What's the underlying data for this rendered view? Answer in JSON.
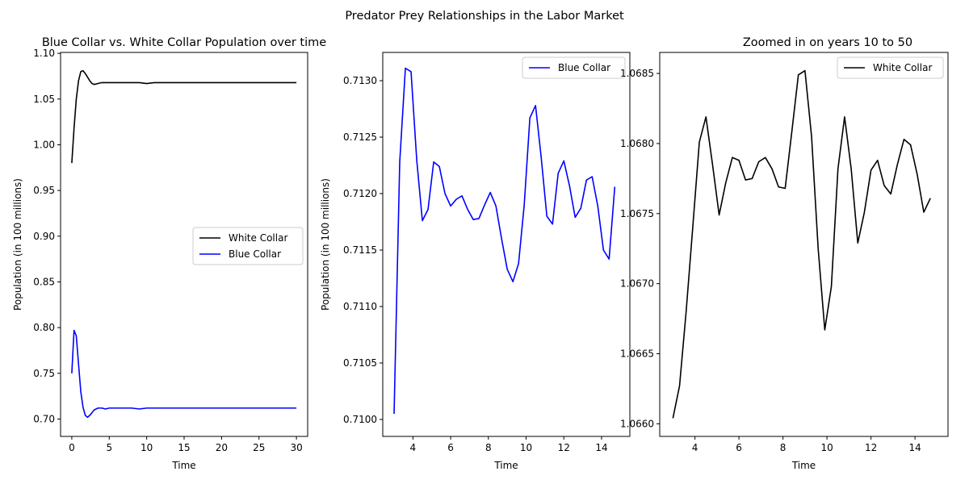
{
  "figure": {
    "suptitle": "Predator Prey Relationships in the Labor Market"
  },
  "chart_data": [
    {
      "type": "line",
      "title": "Blue Collar vs. White Collar Population over time",
      "xlabel": "Time",
      "ylabel": "Population (in 100 millions)",
      "xlim": [
        -1.5,
        31.5
      ],
      "ylim": [
        0.681,
        1.101
      ],
      "xticks": [
        0,
        5,
        10,
        15,
        20,
        25,
        30
      ],
      "xtick_labels": [
        "0",
        "5",
        "10",
        "15",
        "20",
        "25",
        "30"
      ],
      "yticks": [
        0.7,
        0.75,
        0.8,
        0.85,
        0.9,
        0.95,
        1.0,
        1.05,
        1.1
      ],
      "ytick_labels": [
        "0.70",
        "0.75",
        "0.80",
        "0.85",
        "0.90",
        "0.95",
        "1.00",
        "1.05",
        "1.10"
      ],
      "legend_position": "center-right",
      "series": [
        {
          "name": "White Collar",
          "color": "#000000",
          "x": [
            0,
            0.3,
            0.6,
            0.9,
            1.2,
            1.5,
            1.8,
            2.1,
            2.4,
            2.7,
            3.0,
            3.5,
            4.0,
            5,
            6,
            7,
            8,
            9,
            10,
            11,
            12,
            13,
            14,
            15,
            16,
            17,
            18,
            19,
            20,
            21,
            22,
            23,
            24,
            25,
            26,
            27,
            28,
            29,
            30
          ],
          "y": [
            0.98,
            1.018,
            1.05,
            1.07,
            1.08,
            1.081,
            1.078,
            1.074,
            1.07,
            1.067,
            1.066,
            1.067,
            1.068,
            1.068,
            1.068,
            1.068,
            1.068,
            1.068,
            1.067,
            1.068,
            1.068,
            1.068,
            1.068,
            1.068,
            1.068,
            1.068,
            1.068,
            1.068,
            1.068,
            1.068,
            1.068,
            1.068,
            1.068,
            1.068,
            1.068,
            1.068,
            1.068,
            1.068,
            1.068
          ]
        },
        {
          "name": "Blue Collar",
          "color": "#0000ff",
          "x": [
            0,
            0.3,
            0.6,
            0.9,
            1.2,
            1.5,
            1.8,
            2.1,
            2.4,
            2.7,
            3.0,
            3.5,
            4.0,
            4.5,
            5,
            6,
            7,
            8,
            9,
            10,
            11,
            12,
            13,
            14,
            15,
            16,
            17,
            18,
            19,
            20,
            21,
            22,
            23,
            24,
            25,
            26,
            27,
            28,
            29,
            30
          ],
          "y": [
            0.75,
            0.797,
            0.791,
            0.76,
            0.73,
            0.713,
            0.704,
            0.702,
            0.704,
            0.707,
            0.71,
            0.712,
            0.712,
            0.711,
            0.712,
            0.712,
            0.712,
            0.712,
            0.711,
            0.712,
            0.712,
            0.712,
            0.712,
            0.712,
            0.712,
            0.712,
            0.712,
            0.712,
            0.712,
            0.712,
            0.712,
            0.712,
            0.712,
            0.712,
            0.712,
            0.712,
            0.712,
            0.712,
            0.712,
            0.712
          ]
        }
      ]
    },
    {
      "type": "line",
      "title": "",
      "xlabel": "Time",
      "ylabel": "Population (in 100 millions)",
      "xlim": [
        2.4,
        15.5
      ],
      "ylim": [
        0.70985,
        0.71325
      ],
      "xticks": [
        4,
        6,
        8,
        10,
        12,
        14
      ],
      "xtick_labels": [
        "4",
        "6",
        "8",
        "10",
        "12",
        "14"
      ],
      "yticks": [
        0.71,
        0.7105,
        0.711,
        0.7115,
        0.712,
        0.7125,
        0.713
      ],
      "ytick_labels": [
        "0.7100",
        "0.7105",
        "0.7110",
        "0.7115",
        "0.7120",
        "0.7125",
        "0.7130"
      ],
      "legend_position": "top-right",
      "series": [
        {
          "name": "Blue Collar",
          "color": "#0000ff",
          "x": [
            3.0,
            3.3,
            3.6,
            3.9,
            4.2,
            4.5,
            4.8,
            5.1,
            5.4,
            5.7,
            6.0,
            6.3,
            6.6,
            6.9,
            7.2,
            7.5,
            7.8,
            8.1,
            8.4,
            8.7,
            9.0,
            9.3,
            9.6,
            9.9,
            10.2,
            10.5,
            10.8,
            11.1,
            11.4,
            11.7,
            12.0,
            12.3,
            12.6,
            12.9,
            13.2,
            13.5,
            13.8,
            14.1,
            14.4,
            14.7
          ],
          "y": [
            0.71005,
            0.71228,
            0.71311,
            0.71308,
            0.7123,
            0.71176,
            0.71186,
            0.71228,
            0.71224,
            0.712,
            0.71189,
            0.71195,
            0.71198,
            0.71186,
            0.71177,
            0.71178,
            0.7119,
            0.71201,
            0.71189,
            0.7116,
            0.71133,
            0.71122,
            0.71138,
            0.7119,
            0.71267,
            0.71278,
            0.71232,
            0.7118,
            0.71173,
            0.71218,
            0.71229,
            0.71207,
            0.71179,
            0.71187,
            0.71212,
            0.71215,
            0.71189,
            0.7115,
            0.71142,
            0.71206
          ]
        }
      ]
    },
    {
      "type": "line",
      "title": "Zoomed in on years 10 to 50",
      "xlabel": "Time",
      "ylabel": "",
      "xlim": [
        2.4,
        15.5
      ],
      "ylim": [
        1.06591,
        1.06865
      ],
      "xticks": [
        4,
        6,
        8,
        10,
        12,
        14
      ],
      "xtick_labels": [
        "4",
        "6",
        "8",
        "10",
        "12",
        "14"
      ],
      "yticks": [
        1.066,
        1.0665,
        1.067,
        1.0675,
        1.068,
        1.0685
      ],
      "ytick_labels": [
        "1.0660",
        "1.0665",
        "1.0670",
        "1.0675",
        "1.0680",
        "1.0685"
      ],
      "legend_position": "top-right",
      "series": [
        {
          "name": "White Collar",
          "color": "#000000",
          "x": [
            3.0,
            3.3,
            3.6,
            3.9,
            4.2,
            4.5,
            4.8,
            5.1,
            5.4,
            5.7,
            6.0,
            6.3,
            6.6,
            6.9,
            7.2,
            7.5,
            7.8,
            8.1,
            8.4,
            8.7,
            9.0,
            9.3,
            9.6,
            9.9,
            10.2,
            10.5,
            10.8,
            11.1,
            11.4,
            11.7,
            12.0,
            12.3,
            12.6,
            12.9,
            13.2,
            13.5,
            13.8,
            14.1,
            14.4,
            14.7
          ],
          "y": [
            1.06604,
            1.06627,
            1.0668,
            1.0674,
            1.06801,
            1.06819,
            1.06785,
            1.06749,
            1.06772,
            1.0679,
            1.06788,
            1.06774,
            1.06775,
            1.06787,
            1.0679,
            1.06782,
            1.06769,
            1.06768,
            1.06808,
            1.06849,
            1.06852,
            1.06805,
            1.06725,
            1.06667,
            1.06698,
            1.06782,
            1.06819,
            1.06782,
            1.06729,
            1.06751,
            1.06781,
            1.06788,
            1.0677,
            1.06764,
            1.06785,
            1.06803,
            1.06799,
            1.06778,
            1.06751,
            1.06761
          ]
        }
      ]
    }
  ]
}
